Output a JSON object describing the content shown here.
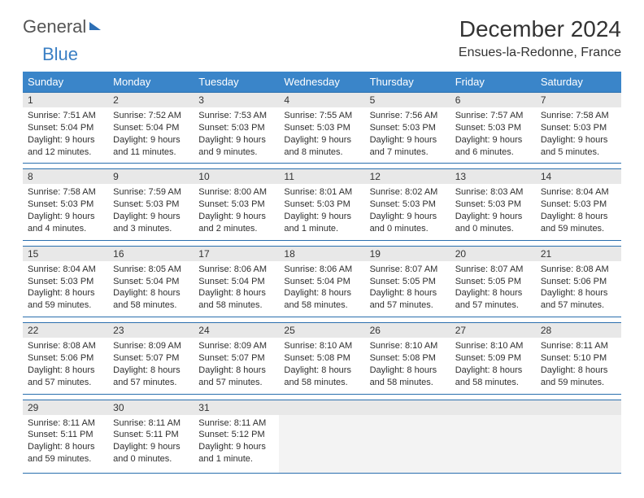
{
  "brand": {
    "part1": "General",
    "part2": "Blue"
  },
  "title": "December 2024",
  "location": "Ensues-la-Redonne, France",
  "day_headers": [
    "Sunday",
    "Monday",
    "Tuesday",
    "Wednesday",
    "Thursday",
    "Friday",
    "Saturday"
  ],
  "colors": {
    "header_bg": "#3a85c9",
    "header_text": "#ffffff",
    "cell_border": "#2a6fae",
    "daynum_bg": "#e8e8e8",
    "brand_blue": "#3a7fc4"
  },
  "weeks": [
    [
      {
        "n": "1",
        "sr": "7:51 AM",
        "ss": "5:04 PM",
        "dl": "9 hours and 12 minutes."
      },
      {
        "n": "2",
        "sr": "7:52 AM",
        "ss": "5:04 PM",
        "dl": "9 hours and 11 minutes."
      },
      {
        "n": "3",
        "sr": "7:53 AM",
        "ss": "5:03 PM",
        "dl": "9 hours and 9 minutes."
      },
      {
        "n": "4",
        "sr": "7:55 AM",
        "ss": "5:03 PM",
        "dl": "9 hours and 8 minutes."
      },
      {
        "n": "5",
        "sr": "7:56 AM",
        "ss": "5:03 PM",
        "dl": "9 hours and 7 minutes."
      },
      {
        "n": "6",
        "sr": "7:57 AM",
        "ss": "5:03 PM",
        "dl": "9 hours and 6 minutes."
      },
      {
        "n": "7",
        "sr": "7:58 AM",
        "ss": "5:03 PM",
        "dl": "9 hours and 5 minutes."
      }
    ],
    [
      {
        "n": "8",
        "sr": "7:58 AM",
        "ss": "5:03 PM",
        "dl": "9 hours and 4 minutes."
      },
      {
        "n": "9",
        "sr": "7:59 AM",
        "ss": "5:03 PM",
        "dl": "9 hours and 3 minutes."
      },
      {
        "n": "10",
        "sr": "8:00 AM",
        "ss": "5:03 PM",
        "dl": "9 hours and 2 minutes."
      },
      {
        "n": "11",
        "sr": "8:01 AM",
        "ss": "5:03 PM",
        "dl": "9 hours and 1 minute."
      },
      {
        "n": "12",
        "sr": "8:02 AM",
        "ss": "5:03 PM",
        "dl": "9 hours and 0 minutes."
      },
      {
        "n": "13",
        "sr": "8:03 AM",
        "ss": "5:03 PM",
        "dl": "9 hours and 0 minutes."
      },
      {
        "n": "14",
        "sr": "8:04 AM",
        "ss": "5:03 PM",
        "dl": "8 hours and 59 minutes."
      }
    ],
    [
      {
        "n": "15",
        "sr": "8:04 AM",
        "ss": "5:03 PM",
        "dl": "8 hours and 59 minutes."
      },
      {
        "n": "16",
        "sr": "8:05 AM",
        "ss": "5:04 PM",
        "dl": "8 hours and 58 minutes."
      },
      {
        "n": "17",
        "sr": "8:06 AM",
        "ss": "5:04 PM",
        "dl": "8 hours and 58 minutes."
      },
      {
        "n": "18",
        "sr": "8:06 AM",
        "ss": "5:04 PM",
        "dl": "8 hours and 58 minutes."
      },
      {
        "n": "19",
        "sr": "8:07 AM",
        "ss": "5:05 PM",
        "dl": "8 hours and 57 minutes."
      },
      {
        "n": "20",
        "sr": "8:07 AM",
        "ss": "5:05 PM",
        "dl": "8 hours and 57 minutes."
      },
      {
        "n": "21",
        "sr": "8:08 AM",
        "ss": "5:06 PM",
        "dl": "8 hours and 57 minutes."
      }
    ],
    [
      {
        "n": "22",
        "sr": "8:08 AM",
        "ss": "5:06 PM",
        "dl": "8 hours and 57 minutes."
      },
      {
        "n": "23",
        "sr": "8:09 AM",
        "ss": "5:07 PM",
        "dl": "8 hours and 57 minutes."
      },
      {
        "n": "24",
        "sr": "8:09 AM",
        "ss": "5:07 PM",
        "dl": "8 hours and 57 minutes."
      },
      {
        "n": "25",
        "sr": "8:10 AM",
        "ss": "5:08 PM",
        "dl": "8 hours and 58 minutes."
      },
      {
        "n": "26",
        "sr": "8:10 AM",
        "ss": "5:08 PM",
        "dl": "8 hours and 58 minutes."
      },
      {
        "n": "27",
        "sr": "8:10 AM",
        "ss": "5:09 PM",
        "dl": "8 hours and 58 minutes."
      },
      {
        "n": "28",
        "sr": "8:11 AM",
        "ss": "5:10 PM",
        "dl": "8 hours and 59 minutes."
      }
    ],
    [
      {
        "n": "29",
        "sr": "8:11 AM",
        "ss": "5:11 PM",
        "dl": "8 hours and 59 minutes."
      },
      {
        "n": "30",
        "sr": "8:11 AM",
        "ss": "5:11 PM",
        "dl": "9 hours and 0 minutes."
      },
      {
        "n": "31",
        "sr": "8:11 AM",
        "ss": "5:12 PM",
        "dl": "9 hours and 1 minute."
      },
      null,
      null,
      null,
      null
    ]
  ],
  "labels": {
    "sunrise": "Sunrise:",
    "sunset": "Sunset:",
    "daylight": "Daylight:"
  }
}
